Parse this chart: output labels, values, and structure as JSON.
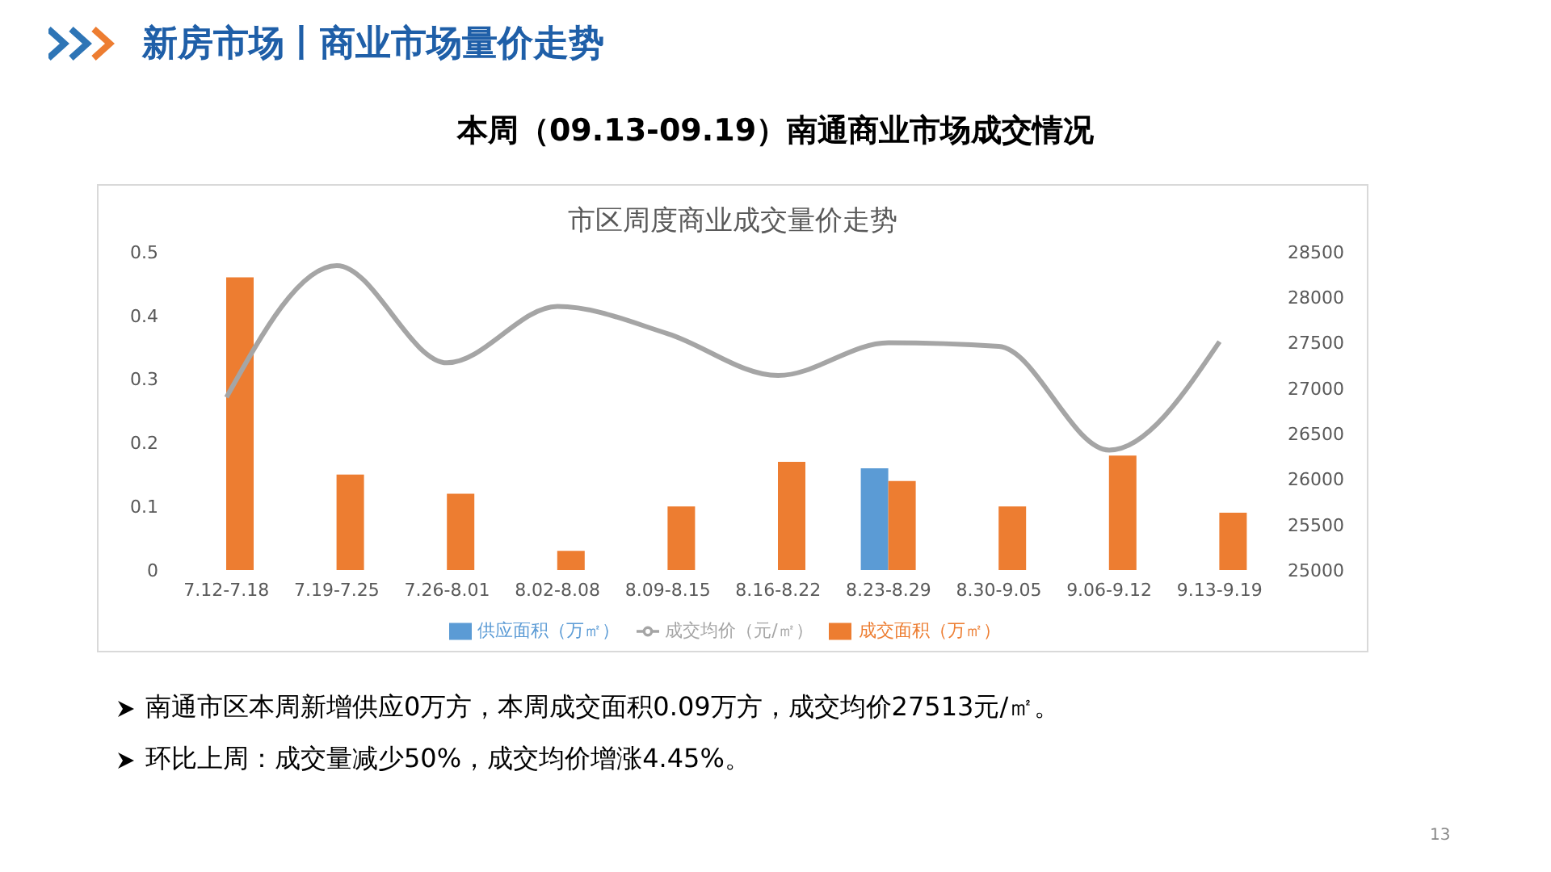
{
  "chart_data": {
    "type": "bar",
    "title": "市区周度商业成交量价走势",
    "subtitle": "本周（09.13-09.19）南通商业市场成交情况",
    "categories": [
      "7.12-7.18",
      "7.19-7.25",
      "7.26-8.01",
      "8.02-8.08",
      "8.09-8.15",
      "8.16-8.22",
      "8.23-8.29",
      "8.30-9.05",
      "9.06-9.12",
      "9.13-9.19"
    ],
    "series": [
      {
        "name": "供应面积（万㎡）",
        "color": "#5b9bd5",
        "values": [
          null,
          null,
          null,
          null,
          null,
          null,
          0.16,
          null,
          null,
          null
        ]
      },
      {
        "name": "成交面积（万㎡）",
        "color": "#ed7d31",
        "values": [
          0.46,
          0.15,
          0.12,
          0.03,
          0.1,
          0.17,
          0.14,
          0.1,
          0.18,
          0.09
        ]
      },
      {
        "name": "成交均价（元/㎡）",
        "type": "line",
        "axis": "y2",
        "color": "#a5a5a5",
        "values": [
          26900,
          28350,
          27280,
          27900,
          27600,
          27140,
          27500,
          27460,
          26320,
          27513
        ]
      }
    ],
    "ylim": [
      0,
      0.5
    ],
    "yticks": [
      0,
      0.1,
      0.2,
      0.3,
      0.4,
      0.5
    ],
    "y2lim": [
      25000,
      28500
    ],
    "y2ticks": [
      25000,
      25500,
      26000,
      26500,
      27000,
      27500,
      28000,
      28500
    ],
    "grid": false,
    "legend": "bottom",
    "annotations": [
      "新房市场丨商业市场量价走势",
      "南通市区本周新增供应0万方，本周成交面积0.09万方，成交均价27513元/㎡。",
      "环比上周：成交量减少50%，成交均价增涨4.45%。",
      "13"
    ]
  }
}
